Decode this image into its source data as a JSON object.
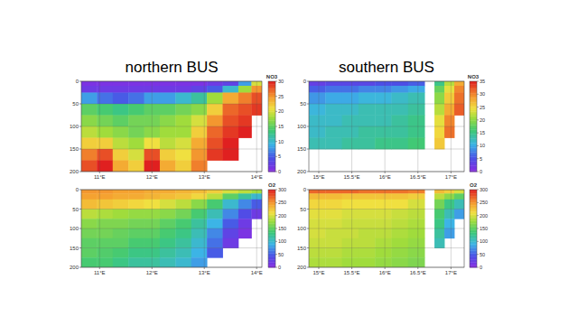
{
  "header": {
    "left": "northern BUS",
    "right": "southern BUS"
  },
  "chart_data": [
    {
      "type": "heatmap",
      "title": "NO3",
      "grid": true,
      "x_bins": [
        10.65,
        10.95,
        11.25,
        11.55,
        11.85,
        12.15,
        12.45,
        12.75,
        13.05,
        13.35,
        13.65,
        13.9,
        14.1
      ],
      "y_bins": [
        0,
        10,
        25,
        50,
        75,
        100,
        125,
        150,
        175,
        200
      ],
      "xlim": [
        10.65,
        14.1
      ],
      "ylim": [
        0,
        200
      ],
      "xticks": [
        {
          "value": 11,
          "label": "11°E"
        },
        {
          "value": 12,
          "label": "12°E"
        },
        {
          "value": 13,
          "label": "13°E"
        },
        {
          "value": 14,
          "label": "14°E"
        }
      ],
      "yticks": [
        0,
        50,
        100,
        150,
        200
      ],
      "cells": [
        [
          1,
          1,
          1,
          1,
          1,
          1,
          1,
          1,
          2,
          3,
          8,
          20
        ],
        [
          2,
          2,
          2,
          2,
          2,
          2,
          2,
          3,
          5,
          10,
          18,
          25
        ],
        [
          8,
          6,
          5,
          6,
          8,
          8,
          10,
          12,
          18,
          24,
          26,
          28
        ],
        [
          15,
          14,
          13,
          14,
          15,
          15,
          16,
          17,
          22,
          27,
          28,
          29
        ],
        [
          17,
          16,
          15,
          16,
          16,
          17,
          18,
          20,
          25,
          28,
          29,
          null
        ],
        [
          19,
          18,
          17,
          16,
          17,
          18,
          18,
          22,
          27,
          29,
          30,
          null
        ],
        [
          22,
          22,
          19,
          18,
          21,
          19,
          20,
          24,
          28,
          30,
          null,
          null
        ],
        [
          26,
          28,
          22,
          20,
          28,
          22,
          21,
          25,
          29,
          30,
          null,
          null
        ],
        [
          28,
          30,
          24,
          22,
          30,
          24,
          22,
          26,
          null,
          null,
          null,
          null
        ]
      ],
      "colorbar": {
        "range": [
          0,
          30
        ],
        "ticks": [
          0,
          5,
          10,
          15,
          20,
          25,
          30
        ]
      }
    },
    {
      "type": "heatmap",
      "title": "O2",
      "grid": true,
      "x_bins": [
        10.65,
        10.95,
        11.25,
        11.55,
        11.85,
        12.15,
        12.45,
        12.75,
        13.05,
        13.35,
        13.65,
        13.9,
        14.1
      ],
      "y_bins": [
        0,
        10,
        25,
        50,
        75,
        100,
        125,
        150,
        175,
        200
      ],
      "xlim": [
        10.65,
        14.1
      ],
      "ylim": [
        0,
        200
      ],
      "xticks": [
        {
          "value": 11,
          "label": "11°E"
        },
        {
          "value": 12,
          "label": "12°E"
        },
        {
          "value": 13,
          "label": "13°E"
        },
        {
          "value": 14,
          "label": "14°E"
        }
      ],
      "yticks": [
        0,
        50,
        100,
        150,
        200
      ],
      "cells": [
        [
          250,
          250,
          245,
          245,
          240,
          240,
          235,
          230,
          220,
          200,
          190,
          180
        ],
        [
          245,
          245,
          240,
          240,
          235,
          230,
          225,
          215,
          190,
          150,
          120,
          100
        ],
        [
          230,
          225,
          220,
          215,
          210,
          200,
          190,
          170,
          140,
          100,
          70,
          50
        ],
        [
          190,
          185,
          180,
          175,
          175,
          170,
          160,
          140,
          110,
          70,
          40,
          20
        ],
        [
          170,
          165,
          165,
          160,
          160,
          150,
          140,
          120,
          90,
          50,
          20,
          null
        ],
        [
          160,
          160,
          155,
          150,
          150,
          140,
          130,
          110,
          70,
          30,
          10,
          null
        ],
        [
          150,
          150,
          150,
          140,
          140,
          130,
          120,
          100,
          60,
          20,
          null,
          null
        ],
        [
          150,
          145,
          140,
          130,
          130,
          120,
          110,
          90,
          50,
          null,
          null,
          null
        ],
        [
          140,
          140,
          130,
          120,
          120,
          110,
          100,
          80,
          null,
          null,
          null,
          null
        ]
      ],
      "colorbar": {
        "range": [
          0,
          300
        ],
        "ticks": [
          0,
          50,
          100,
          150,
          200,
          250,
          300
        ]
      }
    },
    {
      "type": "heatmap",
      "title": "NO3",
      "grid": true,
      "x_bins": [
        14.85,
        15.1,
        15.35,
        15.6,
        15.85,
        16.1,
        16.35,
        16.6,
        16.75,
        16.9,
        17.05,
        17.2
      ],
      "y_bins": [
        0,
        10,
        25,
        50,
        75,
        100,
        125,
        150,
        175,
        200
      ],
      "xlim": [
        14.85,
        17.2
      ],
      "ylim": [
        0,
        200
      ],
      "xticks": [
        {
          "value": 15,
          "label": "15°E"
        },
        {
          "value": 15.5,
          "label": "15.5°E"
        },
        {
          "value": 16,
          "label": "16°E"
        },
        {
          "value": 16.5,
          "label": "16.5°E"
        },
        {
          "value": 17,
          "label": "17°E"
        }
      ],
      "yticks": [
        0,
        50,
        100,
        150,
        200
      ],
      "cells": [
        [
          3,
          4,
          4,
          4,
          5,
          5,
          6,
          null,
          15,
          22,
          28
        ],
        [
          6,
          7,
          7,
          8,
          8,
          9,
          10,
          null,
          18,
          24,
          30
        ],
        [
          9,
          10,
          10,
          11,
          11,
          12,
          13,
          null,
          20,
          26,
          31
        ],
        [
          11,
          12,
          12,
          13,
          13,
          13,
          14,
          null,
          22,
          28,
          32
        ],
        [
          12,
          12,
          13,
          13,
          13,
          14,
          15,
          null,
          24,
          30,
          null
        ],
        [
          12,
          13,
          13,
          14,
          14,
          14,
          15,
          null,
          25,
          31,
          null
        ],
        [
          13,
          13,
          14,
          14,
          15,
          15,
          16,
          null,
          26,
          null,
          null
        ],
        [
          null,
          null,
          null,
          null,
          null,
          null,
          null,
          null,
          null,
          null,
          null
        ],
        [
          null,
          null,
          null,
          null,
          null,
          null,
          null,
          null,
          null,
          null,
          null
        ]
      ],
      "colorbar": {
        "range": [
          0,
          35
        ],
        "ticks": [
          0,
          5,
          10,
          15,
          20,
          25,
          30,
          35
        ]
      }
    },
    {
      "type": "heatmap",
      "title": "O2",
      "grid": true,
      "x_bins": [
        14.85,
        15.1,
        15.35,
        15.6,
        15.85,
        16.1,
        16.35,
        16.6,
        16.75,
        16.9,
        17.05,
        17.2
      ],
      "y_bins": [
        0,
        10,
        25,
        50,
        75,
        100,
        125,
        150,
        175,
        200
      ],
      "xlim": [
        14.85,
        17.2
      ],
      "ylim": [
        0,
        200
      ],
      "xticks": [
        {
          "value": 15,
          "label": "15°E"
        },
        {
          "value": 15.5,
          "label": "15.5°E"
        },
        {
          "value": 16,
          "label": "16°E"
        },
        {
          "value": 16.5,
          "label": "16.5°E"
        },
        {
          "value": 17,
          "label": "17°E"
        }
      ],
      "yticks": [
        0,
        50,
        100,
        150,
        200
      ],
      "cells": [
        [
          270,
          270,
          270,
          265,
          265,
          265,
          260,
          null,
          230,
          220,
          200
        ],
        [
          230,
          230,
          225,
          225,
          225,
          225,
          220,
          null,
          190,
          170,
          150
        ],
        [
          215,
          215,
          210,
          210,
          210,
          210,
          200,
          null,
          160,
          130,
          110
        ],
        [
          205,
          205,
          200,
          200,
          200,
          195,
          190,
          null,
          140,
          110,
          80
        ],
        [
          200,
          200,
          195,
          195,
          195,
          190,
          185,
          null,
          130,
          90,
          null
        ],
        [
          200,
          195,
          195,
          190,
          190,
          185,
          180,
          null,
          120,
          80,
          null
        ],
        [
          195,
          195,
          190,
          190,
          185,
          180,
          175,
          null,
          110,
          null,
          null
        ],
        [
          190,
          190,
          185,
          185,
          180,
          175,
          170,
          null,
          null,
          null,
          null
        ],
        [
          185,
          185,
          180,
          180,
          175,
          170,
          165,
          null,
          null,
          null,
          null
        ]
      ],
      "colorbar": {
        "range": [
          0,
          300
        ],
        "ticks": [
          0,
          50,
          100,
          150,
          200,
          250,
          300
        ]
      }
    }
  ]
}
